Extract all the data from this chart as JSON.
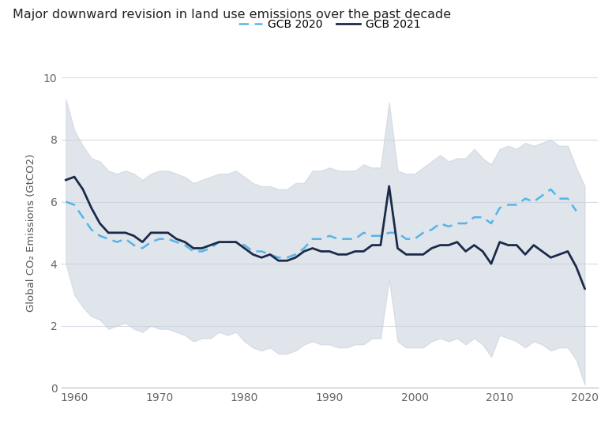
{
  "title": "Major downward revision in land use emissions over the past decade",
  "ylabel": "Global CO₂ Emissions (GtCO2)",
  "xlabel": "",
  "legend_labels": [
    "GCB 2020",
    "GCB 2021"
  ],
  "gcb2020_color": "#56b4e9",
  "gcb2021_color": "#1b2a4a",
  "band_color": "#c8d0dc",
  "band_alpha": 0.55,
  "background_color": "#ffffff",
  "ylim": [
    0,
    10
  ],
  "xlim": [
    1958.5,
    2021.5
  ],
  "xticks": [
    1960,
    1970,
    1980,
    1990,
    2000,
    2010,
    2020
  ],
  "yticks": [
    0,
    2,
    4,
    6,
    8,
    10
  ],
  "years": [
    1959,
    1960,
    1961,
    1962,
    1963,
    1964,
    1965,
    1966,
    1967,
    1968,
    1969,
    1970,
    1971,
    1972,
    1973,
    1974,
    1975,
    1976,
    1977,
    1978,
    1979,
    1980,
    1981,
    1982,
    1983,
    1984,
    1985,
    1986,
    1987,
    1988,
    1989,
    1990,
    1991,
    1992,
    1993,
    1994,
    1995,
    1996,
    1997,
    1998,
    1999,
    2000,
    2001,
    2002,
    2003,
    2004,
    2005,
    2006,
    2007,
    2008,
    2009,
    2010,
    2011,
    2012,
    2013,
    2014,
    2015,
    2016,
    2017,
    2018,
    2019
  ],
  "gcb2020": [
    6.0,
    5.9,
    5.5,
    5.1,
    4.9,
    4.8,
    4.7,
    4.8,
    4.6,
    4.5,
    4.7,
    4.8,
    4.8,
    4.7,
    4.6,
    4.4,
    4.4,
    4.5,
    4.7,
    4.7,
    4.7,
    4.6,
    4.4,
    4.4,
    4.3,
    4.2,
    4.2,
    4.3,
    4.5,
    4.8,
    4.8,
    4.9,
    4.8,
    4.8,
    4.8,
    5.0,
    4.9,
    4.9,
    5.0,
    5.0,
    4.8,
    4.8,
    5.0,
    5.1,
    5.3,
    5.2,
    5.3,
    5.3,
    5.5,
    5.5,
    5.3,
    5.8,
    5.9,
    5.9,
    6.1,
    6.0,
    6.2,
    6.4,
    6.1,
    6.1,
    5.7
  ],
  "gcb2021_years": [
    1959,
    1960,
    1961,
    1962,
    1963,
    1964,
    1965,
    1966,
    1967,
    1968,
    1969,
    1970,
    1971,
    1972,
    1973,
    1974,
    1975,
    1976,
    1977,
    1978,
    1979,
    1980,
    1981,
    1982,
    1983,
    1984,
    1985,
    1986,
    1987,
    1988,
    1989,
    1990,
    1991,
    1992,
    1993,
    1994,
    1995,
    1996,
    1997,
    1998,
    1999,
    2000,
    2001,
    2002,
    2003,
    2004,
    2005,
    2006,
    2007,
    2008,
    2009,
    2010,
    2011,
    2012,
    2013,
    2014,
    2015,
    2016,
    2017,
    2018,
    2019,
    2020
  ],
  "gcb2021": [
    6.7,
    6.8,
    6.4,
    5.8,
    5.3,
    5.0,
    5.0,
    5.0,
    4.9,
    4.7,
    5.0,
    5.0,
    5.0,
    4.8,
    4.7,
    4.5,
    4.5,
    4.6,
    4.7,
    4.7,
    4.7,
    4.5,
    4.3,
    4.2,
    4.3,
    4.1,
    4.1,
    4.2,
    4.4,
    4.5,
    4.4,
    4.4,
    4.3,
    4.3,
    4.4,
    4.4,
    4.6,
    4.6,
    6.5,
    4.5,
    4.3,
    4.3,
    4.3,
    4.5,
    4.6,
    4.6,
    4.7,
    4.4,
    4.6,
    4.4,
    4.0,
    4.7,
    4.6,
    4.6,
    4.3,
    4.6,
    4.4,
    4.2,
    4.3,
    4.4,
    3.9,
    3.2
  ],
  "band_years": [
    1959,
    1960,
    1961,
    1962,
    1963,
    1964,
    1965,
    1966,
    1967,
    1968,
    1969,
    1970,
    1971,
    1972,
    1973,
    1974,
    1975,
    1976,
    1977,
    1978,
    1979,
    1980,
    1981,
    1982,
    1983,
    1984,
    1985,
    1986,
    1987,
    1988,
    1989,
    1990,
    1991,
    1992,
    1993,
    1994,
    1995,
    1996,
    1997,
    1998,
    1999,
    2000,
    2001,
    2002,
    2003,
    2004,
    2005,
    2006,
    2007,
    2008,
    2009,
    2010,
    2011,
    2012,
    2013,
    2014,
    2015,
    2016,
    2017,
    2018,
    2019,
    2020
  ],
  "band_upper": [
    9.3,
    8.3,
    7.8,
    7.4,
    7.3,
    7.0,
    6.9,
    7.0,
    6.9,
    6.7,
    6.9,
    7.0,
    7.0,
    6.9,
    6.8,
    6.6,
    6.7,
    6.8,
    6.9,
    6.9,
    7.0,
    6.8,
    6.6,
    6.5,
    6.5,
    6.4,
    6.4,
    6.6,
    6.6,
    7.0,
    7.0,
    7.1,
    7.0,
    7.0,
    7.0,
    7.2,
    7.1,
    7.1,
    9.2,
    7.0,
    6.9,
    6.9,
    7.1,
    7.3,
    7.5,
    7.3,
    7.4,
    7.4,
    7.7,
    7.4,
    7.2,
    7.7,
    7.8,
    7.7,
    7.9,
    7.8,
    7.9,
    8.0,
    7.8,
    7.8,
    7.1,
    6.5
  ],
  "band_lower": [
    4.0,
    3.0,
    2.6,
    2.3,
    2.2,
    1.9,
    2.0,
    2.1,
    1.9,
    1.8,
    2.0,
    1.9,
    1.9,
    1.8,
    1.7,
    1.5,
    1.6,
    1.6,
    1.8,
    1.7,
    1.8,
    1.5,
    1.3,
    1.2,
    1.3,
    1.1,
    1.1,
    1.2,
    1.4,
    1.5,
    1.4,
    1.4,
    1.3,
    1.3,
    1.4,
    1.4,
    1.6,
    1.6,
    3.5,
    1.5,
    1.3,
    1.3,
    1.3,
    1.5,
    1.6,
    1.5,
    1.6,
    1.4,
    1.6,
    1.4,
    1.0,
    1.7,
    1.6,
    1.5,
    1.3,
    1.5,
    1.4,
    1.2,
    1.3,
    1.3,
    0.9,
    0.1
  ]
}
